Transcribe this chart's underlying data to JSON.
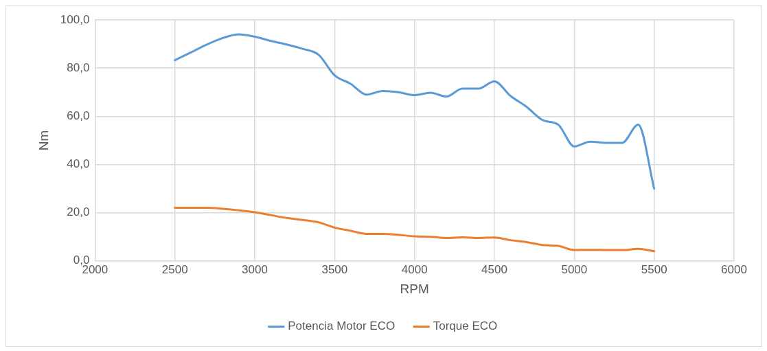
{
  "chart_data": {
    "type": "line",
    "xlabel": "RPM",
    "ylabel": "Nm",
    "x": [
      2500,
      2600,
      2700,
      2800,
      2900,
      3000,
      3100,
      3200,
      3300,
      3400,
      3500,
      3600,
      3700,
      3800,
      3900,
      4000,
      4100,
      4200,
      4300,
      4400,
      4500,
      4600,
      4700,
      4800,
      4900,
      5000,
      5100,
      5200,
      5300,
      5400,
      5500
    ],
    "series": [
      {
        "name": "Potencia Motor ECO",
        "color": "#5b9bd5",
        "values": [
          83.3,
          86.5,
          89.8,
          92.5,
          94,
          93,
          91.3,
          89.8,
          88,
          85.5,
          77,
          73.5,
          69,
          70.5,
          70,
          68.8,
          69.8,
          68.2,
          71.5,
          71.5,
          74.5,
          68.5,
          64,
          58.5,
          56.5,
          47.5,
          49.5,
          49,
          49,
          56.5,
          30
        ]
      },
      {
        "name": "Torque ECO",
        "color": "#ed7d31",
        "values": [
          22,
          22,
          22,
          21.6,
          21,
          20.2,
          19,
          17.8,
          17,
          16,
          13.8,
          12.5,
          11.2,
          11.2,
          10.8,
          10.2,
          10,
          9.5,
          9.8,
          9.5,
          9.7,
          8.6,
          7.8,
          6.6,
          6.2,
          4.5,
          4.6,
          4.5,
          4.5,
          5,
          4
        ]
      }
    ],
    "xlim": [
      2000,
      6000
    ],
    "xticks": [
      2000,
      2500,
      3000,
      3500,
      4000,
      4500,
      5000,
      5500,
      6000
    ],
    "ylim": [
      0,
      100
    ],
    "yticks": [
      {
        "value": 0,
        "label": "0,0"
      },
      {
        "value": 20,
        "label": "20,0"
      },
      {
        "value": 40,
        "label": "40,0"
      },
      {
        "value": 60,
        "label": "60,0"
      },
      {
        "value": 80,
        "label": "80,0"
      },
      {
        "value": 100,
        "label": "100,0"
      }
    ],
    "grid": true,
    "legend": "bottom",
    "marker": "none",
    "line_style": "solid"
  }
}
